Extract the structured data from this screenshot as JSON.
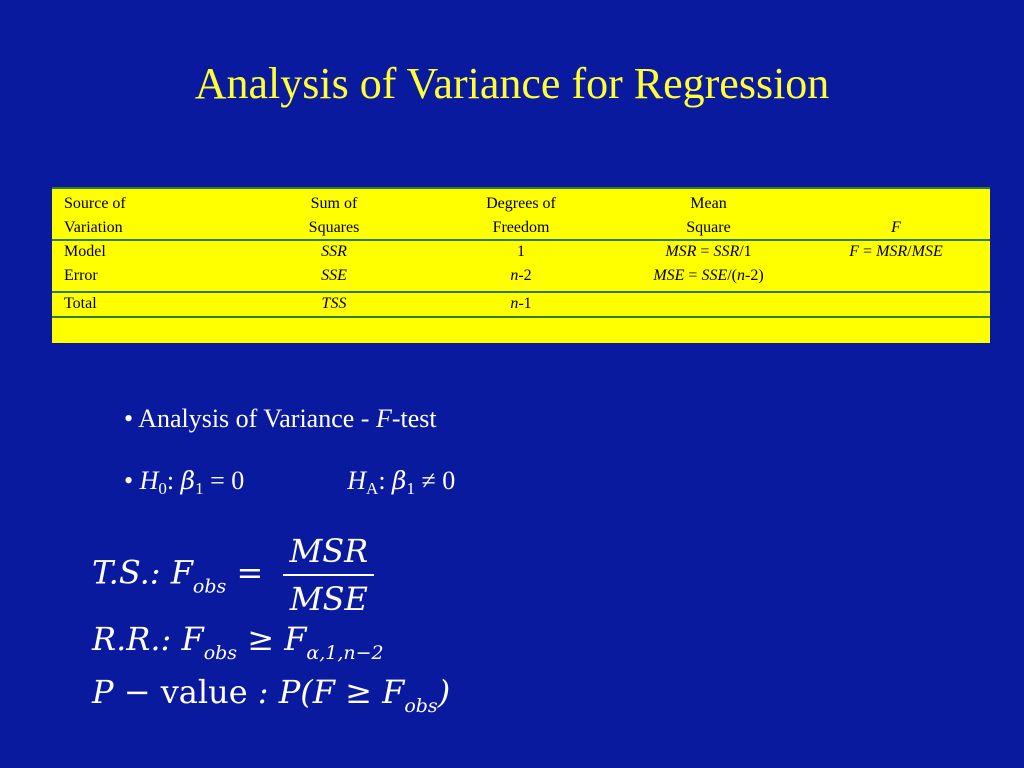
{
  "slide": {
    "title": "Analysis of Variance for Regression",
    "background_color": "#0a1a9e",
    "title_color": "#ffff33"
  },
  "anova_table": {
    "header": {
      "source": [
        "Source of",
        "Variation"
      ],
      "ss": [
        "Sum of",
        "Squares"
      ],
      "df": [
        "Degrees of",
        "Freedom"
      ],
      "ms": [
        "Mean",
        "Square"
      ],
      "f": "F"
    },
    "rows": [
      {
        "source": "Model",
        "ss": "SSR",
        "df": "1",
        "ms_a": "MSR",
        "ms_b": "SSR",
        "ms_c": "/1",
        "f_a": "F",
        "f_b": "MSR",
        "f_c": "MSE"
      },
      {
        "source": "Error",
        "ss": "SSE",
        "df_a": "n",
        "df_b": "-2",
        "ms_a": "MSE",
        "ms_b": "SSE",
        "ms_c": "/(",
        "ms_d": "n",
        "ms_e": "-2)"
      },
      {
        "source": "Total",
        "ss": "TSS",
        "df_a": "n",
        "df_b": "-1"
      }
    ],
    "fill_color": "#ffff00",
    "rule_color": "#2e7d32"
  },
  "bullets": {
    "b1_text": "Analysis of Variance - ",
    "b1_italic": "F",
    "b1_tail": "-test",
    "h0_label": "H",
    "h0_sub": "0",
    "h0_colon": ":",
    "beta": "β",
    "beta_sub": "1",
    "h0_rel": "= 0",
    "ha_label": "H",
    "ha_sub": "A",
    "ha_colon": ":",
    "ha_rel": "≠ 0"
  },
  "formulas": {
    "ts_prefix": "T.S.: F",
    "obs": "obs",
    "eq": "=",
    "numerator": "MSR",
    "denominator": "MSE",
    "rr_prefix": "R.R.: F",
    "ge": "≥",
    "F": "F",
    "alpha_sub": "α,1,n−2",
    "p_prefix": "P −",
    "value_word": "value",
    "p_colon": ": P(",
    "p_close": ")"
  }
}
